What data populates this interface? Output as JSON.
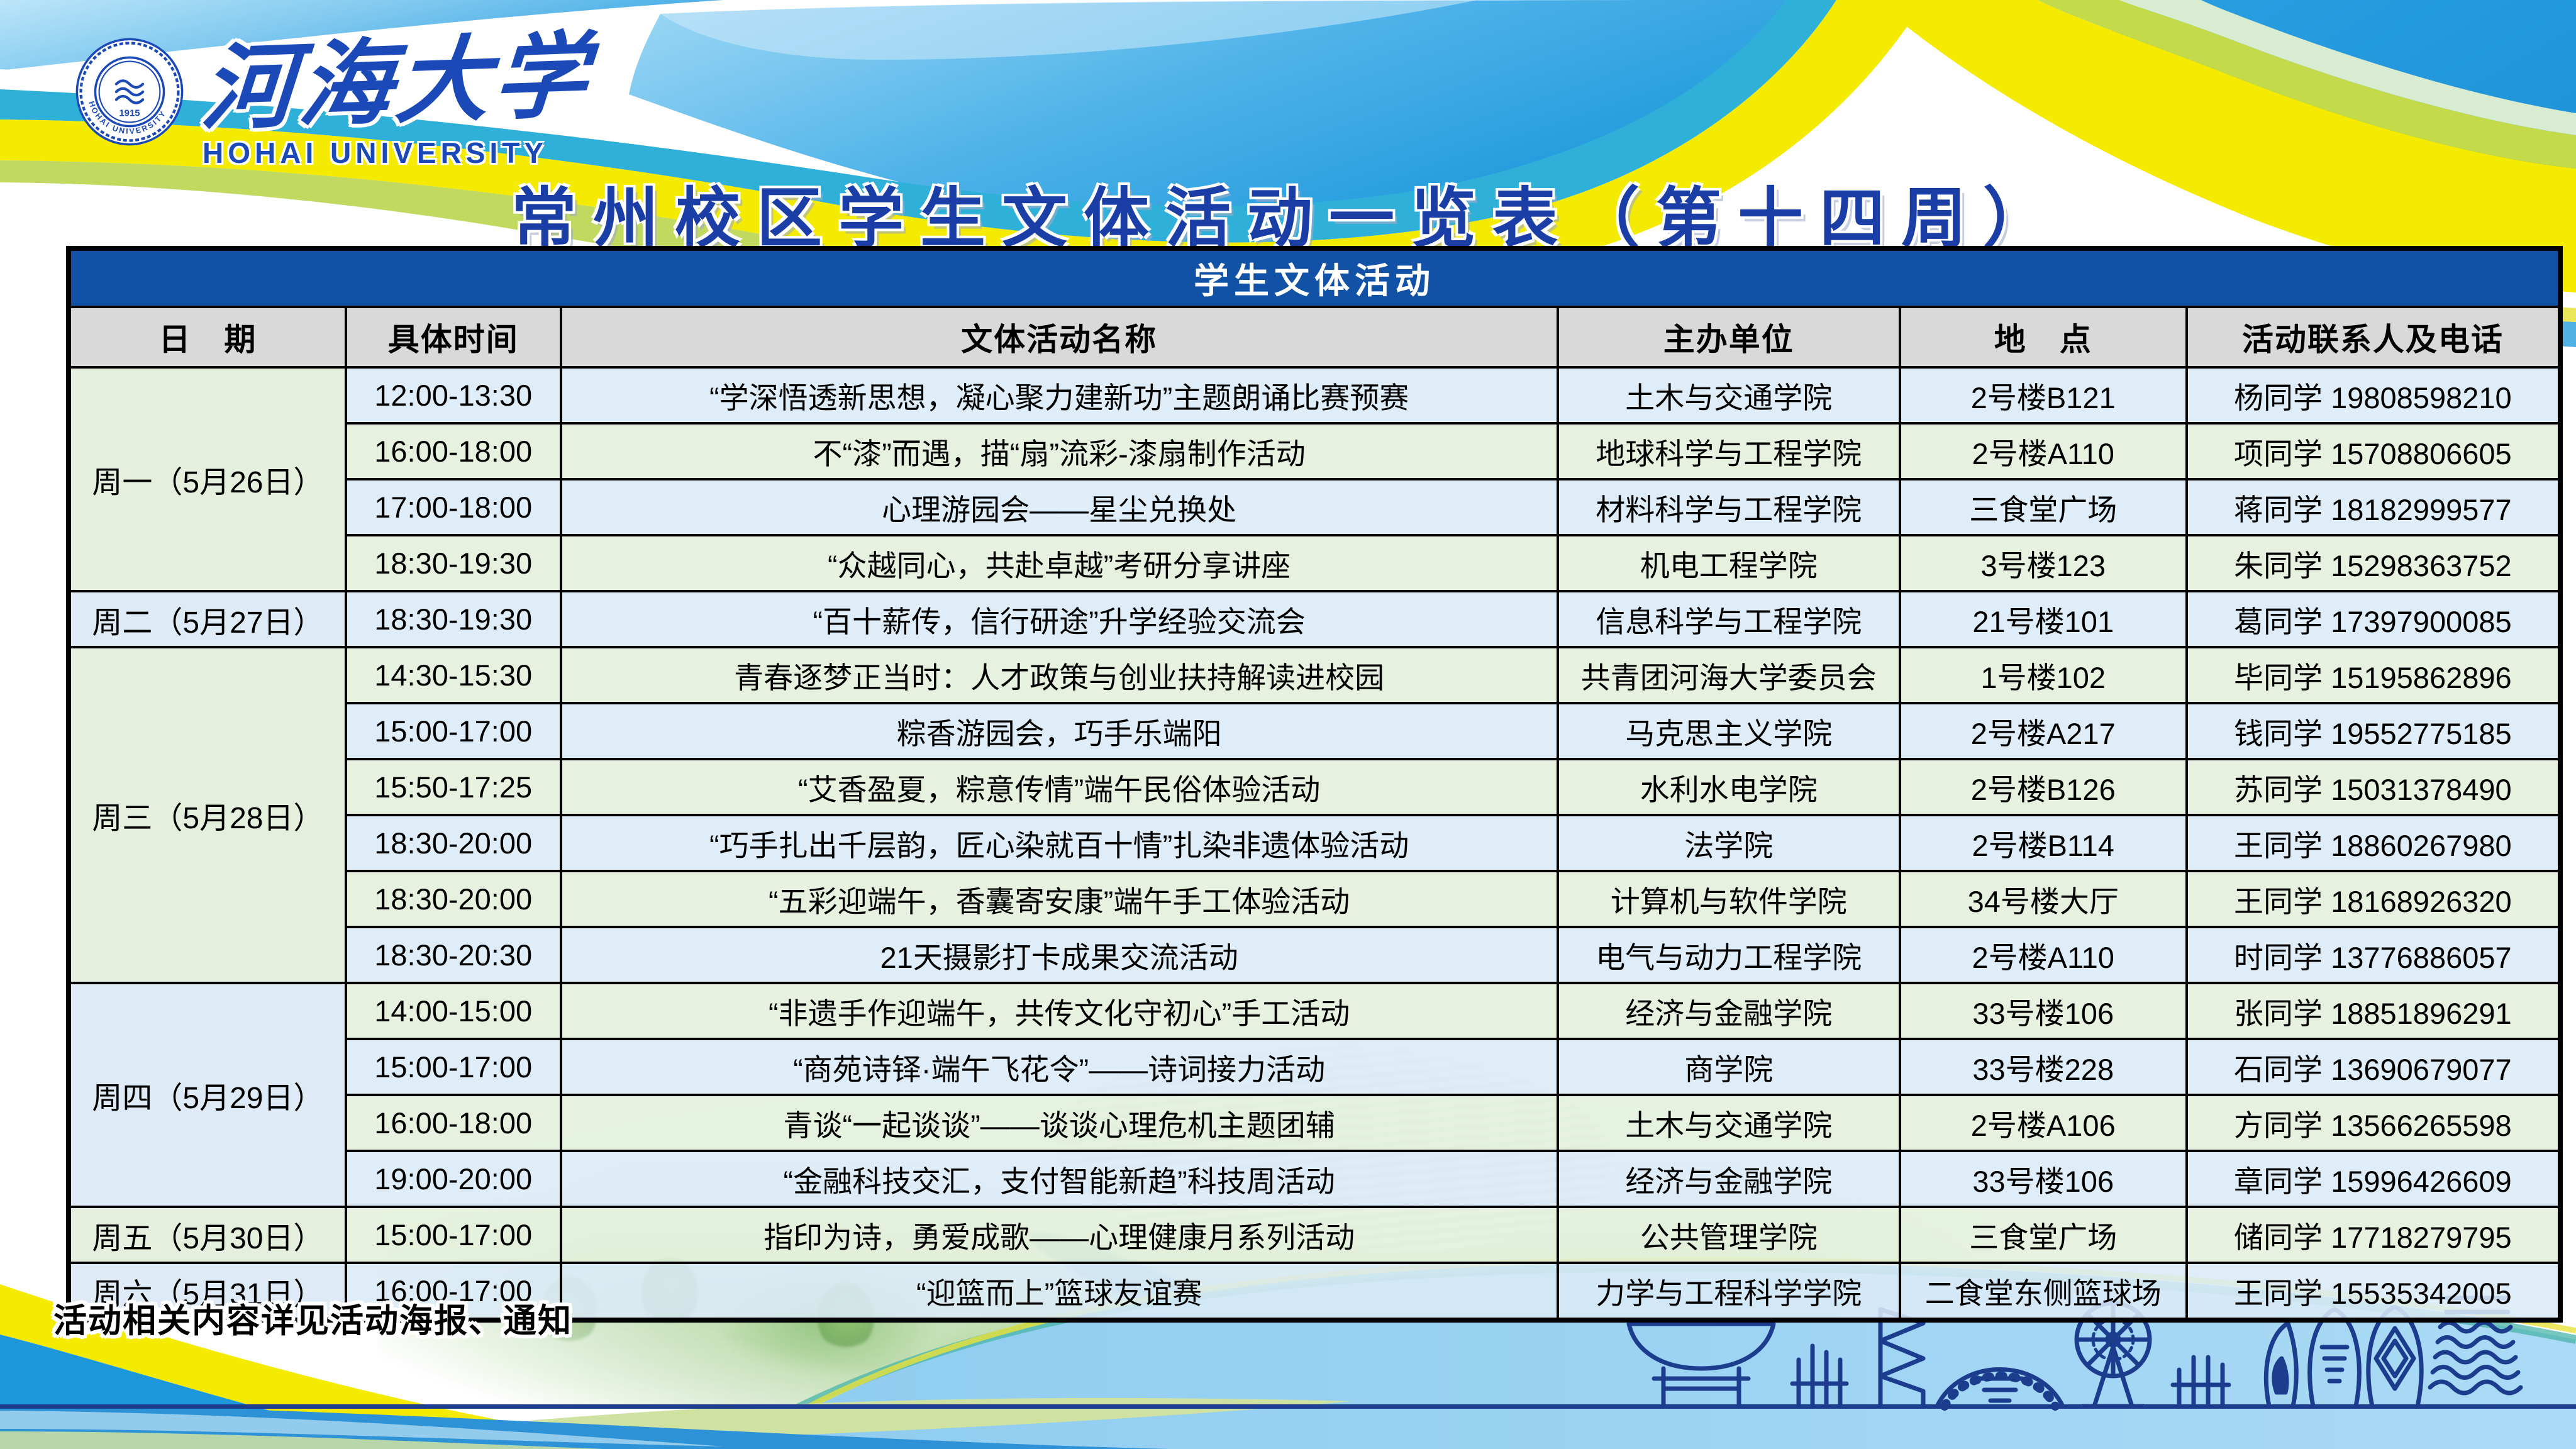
{
  "logo": {
    "university_cn": "河海大学",
    "university_en": "HOHAI UNIVERSITY",
    "seal_year": "1915",
    "seal_ring_text": "HOHAI UNIVERSITY"
  },
  "title": "常州校区学生文体活动一览表（第十四周）",
  "table": {
    "banner": "学生文体活动",
    "columns": [
      "日　期",
      "具体时间",
      "文体活动名称",
      "主办单位",
      "地　点",
      "活动联系人及电话"
    ],
    "days": [
      {
        "date": "周一（5月26日）",
        "rows": [
          {
            "time": "12:00-13:30",
            "activity": "“学深悟透新思想，凝心聚力建新功”主题朗诵比赛预赛",
            "organizer": "土木与交通学院",
            "location": "2号楼B121",
            "contact": "杨同学 19808598210"
          },
          {
            "time": "16:00-18:00",
            "activity": "不“漆”而遇，描“扇”流彩-漆扇制作活动",
            "organizer": "地球科学与工程学院",
            "location": "2号楼A110",
            "contact": "项同学 15708806605"
          },
          {
            "time": "17:00-18:00",
            "activity": "心理游园会——星尘兑换处",
            "organizer": "材料科学与工程学院",
            "location": "三食堂广场",
            "contact": "蒋同学 18182999577"
          },
          {
            "time": "18:30-19:30",
            "activity": "“众越同心，共赴卓越”考研分享讲座",
            "organizer": "机电工程学院",
            "location": "3号楼123",
            "contact": "朱同学 15298363752"
          }
        ]
      },
      {
        "date": "周二（5月27日）",
        "rows": [
          {
            "time": "18:30-19:30",
            "activity": "“百十薪传，信行研途”升学经验交流会",
            "organizer": "信息科学与工程学院",
            "location": "21号楼101",
            "contact": "葛同学 17397900085"
          }
        ]
      },
      {
        "date": "周三（5月28日）",
        "rows": [
          {
            "time": "14:30-15:30",
            "activity": "青春逐梦正当时：人才政策与创业扶持解读进校园",
            "organizer": "共青团河海大学委员会",
            "location": "1号楼102",
            "contact": "毕同学 15195862896"
          },
          {
            "time": "15:00-17:00",
            "activity": "粽香游园会，巧手乐端阳",
            "organizer": "马克思主义学院",
            "location": "2号楼A217",
            "contact": "钱同学 19552775185"
          },
          {
            "time": "15:50-17:25",
            "activity": "“艾香盈夏，粽意传情”端午民俗体验活动",
            "organizer": "水利水电学院",
            "location": "2号楼B126",
            "contact": "苏同学 15031378490"
          },
          {
            "time": "18:30-20:00",
            "activity": "“巧手扎出千层韵，匠心染就百十情”扎染非遗体验活动",
            "organizer": "法学院",
            "location": "2号楼B114",
            "contact": "王同学 18860267980"
          },
          {
            "time": "18:30-20:00",
            "activity": "“五彩迎端午，香囊寄安康”端午手工体验活动",
            "organizer": "计算机与软件学院",
            "location": "34号楼大厅",
            "contact": "王同学 18168926320"
          },
          {
            "time": "18:30-20:30",
            "activity": "21天摄影打卡成果交流活动",
            "organizer": "电气与动力工程学院",
            "location": "2号楼A110",
            "contact": "时同学 13776886057"
          }
        ]
      },
      {
        "date": "周四（5月29日）",
        "rows": [
          {
            "time": "14:00-15:00",
            "activity": "“非遗手作迎端午，共传文化守初心”手工活动",
            "organizer": "经济与金融学院",
            "location": "33号楼106",
            "contact": "张同学 18851896291"
          },
          {
            "time": "15:00-17:00",
            "activity": "“商苑诗铎·端午飞花令”——诗词接力活动",
            "organizer": "商学院",
            "location": "33号楼228",
            "contact": "石同学 13690679077"
          },
          {
            "time": "16:00-18:00",
            "activity": "青谈“一起谈谈”——谈谈心理危机主题团辅",
            "organizer": "土木与交通学院",
            "location": "2号楼A106",
            "contact": "方同学 13566265598"
          },
          {
            "time": "19:00-20:00",
            "activity": "“金融科技交汇，支付智能新趋”科技周活动",
            "organizer": "经济与金融学院",
            "location": "33号楼106",
            "contact": "章同学 15996426609"
          }
        ]
      },
      {
        "date": "周五（5月30日）",
        "rows": [
          {
            "time": "15:00-17:00",
            "activity": "指印为诗，勇爱成歌——心理健康月系列活动",
            "organizer": "公共管理学院",
            "location": "三食堂广场",
            "contact": "储同学 17718279795"
          }
        ]
      },
      {
        "date": "周六（5月31日）",
        "rows": [
          {
            "time": "16:00-17:00",
            "activity": "“迎篮而上”篮球友谊赛",
            "organizer": "力学与工程科学学院",
            "location": "二食堂东侧篮球场",
            "contact": "王同学 15535342005"
          }
        ]
      }
    ]
  },
  "footer_note": "活动相关内容详见活动海报、通知",
  "colors": {
    "banner_blue": "#1152a6",
    "title_blue": "#1b3ea6",
    "header_gray": "#d9d9d9",
    "row_blue": "#dbebf7",
    "row_green": "#e2f0db",
    "ribbon_yellow": "#f4eb00",
    "ribbon_blue": "#1b97da",
    "ribbon_green": "#c3da4a",
    "sky_blue": "#8ed0f2",
    "navy_line": "#1c3c8e",
    "bottom_light_blue": "#a7d7f3"
  }
}
